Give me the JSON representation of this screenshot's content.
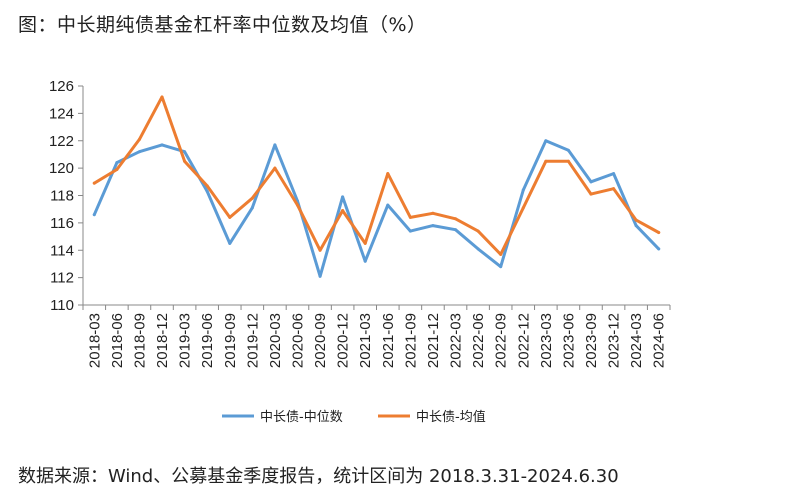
{
  "title": "图：中长期纯债基金杠杆率中位数及均值（%）",
  "source": "数据来源：Wind、公募基金季度报告，统计区间为 2018.3.31-2024.6.30",
  "colors": {
    "median": "#5B9BD5",
    "mean": "#ED7D31",
    "axis": "#888888"
  },
  "chart_data": {
    "type": "line",
    "title": "中长期纯债基金杠杆率中位数及均值（%）",
    "xlabel": "",
    "ylabel": "",
    "ylim": [
      110,
      126
    ],
    "yticks": [
      110,
      112,
      114,
      116,
      118,
      120,
      122,
      124,
      126
    ],
    "grid": false,
    "legend_position": "bottom",
    "categories": [
      "2018-03",
      "2018-06",
      "2018-09",
      "2018-12",
      "2019-03",
      "2019-06",
      "2019-09",
      "2019-12",
      "2020-03",
      "2020-06",
      "2020-09",
      "2020-12",
      "2021-03",
      "2021-06",
      "2021-09",
      "2021-12",
      "2022-03",
      "2022-06",
      "2022-09",
      "2022-12",
      "2023-03",
      "2023-06",
      "2023-09",
      "2023-12",
      "2024-03",
      "2024-06"
    ],
    "series": [
      {
        "name": "中长债-中位数",
        "color": "#5B9BD5",
        "values": [
          116.6,
          120.4,
          121.2,
          121.7,
          121.2,
          118.3,
          114.5,
          117.1,
          121.7,
          117.6,
          112.1,
          117.9,
          113.2,
          117.3,
          115.4,
          115.8,
          115.5,
          114.1,
          112.8,
          118.4,
          122.0,
          121.3,
          119.0,
          119.6,
          115.8,
          114.1
        ]
      },
      {
        "name": "中长债-均值",
        "color": "#ED7D31",
        "values": [
          118.9,
          119.9,
          122.1,
          125.2,
          120.5,
          118.7,
          116.4,
          117.8,
          120.0,
          117.3,
          114.0,
          116.9,
          114.5,
          119.6,
          116.4,
          116.7,
          116.3,
          115.4,
          113.7,
          117.1,
          120.5,
          120.5,
          118.1,
          118.5,
          116.2,
          115.3
        ]
      }
    ]
  }
}
